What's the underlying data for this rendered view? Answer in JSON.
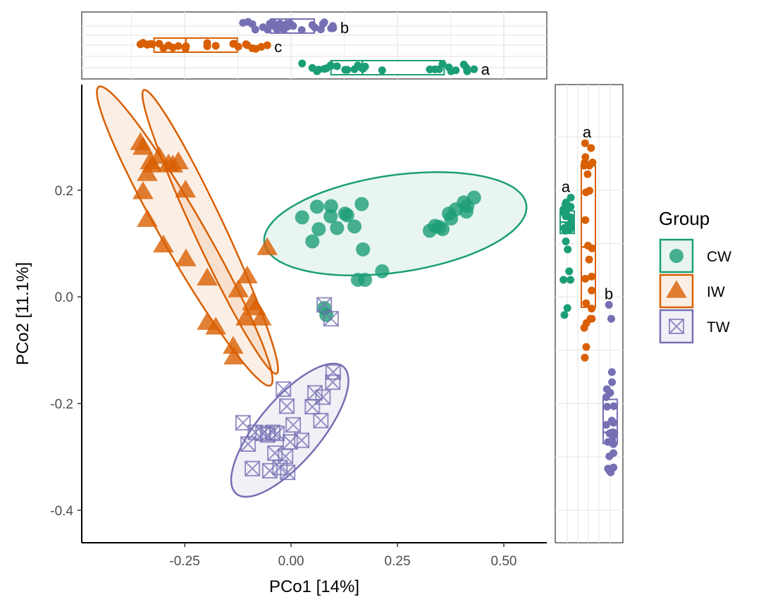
{
  "chart_data": {
    "type": "scatter",
    "xlabel": "PCo1 [14%]",
    "ylabel": "PCo2 [11.1%]",
    "xlim": [
      -0.492,
      0.601
    ],
    "ylim": [
      -0.461,
      0.398
    ],
    "grid": false,
    "x_ticks": [
      {
        "value": -0.25,
        "label": "-0.25"
      },
      {
        "value": 0,
        "label": "0.00"
      },
      {
        "value": 0.25,
        "label": "0.25"
      },
      {
        "value": 0.5,
        "label": "0.50"
      }
    ],
    "y_ticks": [
      {
        "value": -0.4,
        "label": "-0.4"
      },
      {
        "value": -0.2,
        "label": "-0.2"
      },
      {
        "value": 0,
        "label": "0.0"
      },
      {
        "value": 0.2,
        "label": "0.2"
      }
    ],
    "legend": {
      "title": "Group",
      "placement": "right"
    },
    "series": [
      {
        "name": "CW",
        "color": "#1B9E77",
        "shape": "circle",
        "top_letter": "a",
        "right_letter": "a",
        "points": [
          [
            0.026,
            0.149
          ],
          [
            0.061,
            0.169
          ],
          [
            0.094,
            0.17
          ],
          [
            0.093,
            0.151
          ],
          [
            0.065,
            0.127
          ],
          [
            0.05,
            0.104
          ],
          [
            0.108,
            0.129
          ],
          [
            0.127,
            0.156
          ],
          [
            0.132,
            0.153
          ],
          [
            0.166,
            0.174
          ],
          [
            0.149,
            0.132
          ],
          [
            0.169,
            0.089
          ],
          [
            0.214,
            0.048
          ],
          [
            0.157,
            0.032
          ],
          [
            0.174,
            0.032
          ],
          [
            0.326,
            0.124
          ],
          [
            0.338,
            0.133
          ],
          [
            0.356,
            0.127
          ],
          [
            0.348,
            0.131
          ],
          [
            0.371,
            0.156
          ],
          [
            0.376,
            0.147
          ],
          [
            0.387,
            0.164
          ],
          [
            0.406,
            0.177
          ],
          [
            0.412,
            0.16
          ],
          [
            0.414,
            0.17
          ],
          [
            0.43,
            0.186
          ],
          [
            0.078,
            -0.021
          ],
          [
            0.083,
            -0.034
          ]
        ],
        "ellipses": [
          {
            "center": [
              0.245,
              0.137
            ],
            "axis_a": [
              0.308,
              0.036
            ],
            "axis_b": [
              0.017,
              -0.09
            ]
          }
        ]
      },
      {
        "name": "IW",
        "color": "#D95F02",
        "shape": "triangle",
        "top_letter": "c",
        "right_letter": "a",
        "points": [
          [
            -0.354,
            0.288
          ],
          [
            -0.348,
            0.279
          ],
          [
            -0.331,
            0.252
          ],
          [
            -0.338,
            0.23
          ],
          [
            -0.31,
            0.262
          ],
          [
            -0.288,
            0.248
          ],
          [
            -0.265,
            0.252
          ],
          [
            -0.348,
            0.196
          ],
          [
            -0.248,
            0.199
          ],
          [
            -0.338,
            0.144
          ],
          [
            -0.3,
            0.096
          ],
          [
            -0.247,
            0.07
          ],
          [
            -0.197,
            0.034
          ],
          [
            -0.056,
            0.091
          ],
          [
            -0.103,
            0.038
          ],
          [
            -0.124,
            0.012
          ],
          [
            -0.083,
            -0.022
          ],
          [
            -0.106,
            -0.041
          ],
          [
            -0.07,
            -0.041
          ],
          [
            -0.197,
            -0.049
          ],
          [
            -0.177,
            -0.058
          ],
          [
            -0.136,
            -0.094
          ],
          [
            -0.134,
            -0.114
          ],
          [
            -0.326,
            0.246
          ],
          [
            -0.278,
            0.246
          ],
          [
            -0.091,
            -0.012
          ]
        ],
        "ellipses": [
          {
            "center": [
              -0.25,
              0.114
            ],
            "axis_a": [
              0.202,
              -0.28
            ],
            "axis_b": [
              0.043,
              0.02
            ]
          },
          {
            "center": [
              -0.19,
              0.122
            ],
            "axis_a": [
              0.156,
              -0.266
            ],
            "axis_b": [
              0.033,
              0.012
            ]
          }
        ]
      },
      {
        "name": "TW",
        "color": "#7570B3",
        "shape": "square-cross",
        "top_letter": "b",
        "right_letter": "b",
        "points": [
          [
            0.099,
            -0.141
          ],
          [
            0.098,
            -0.16
          ],
          [
            0.056,
            -0.18
          ],
          [
            0.075,
            -0.188
          ],
          [
            -0.018,
            -0.173
          ],
          [
            -0.01,
            -0.205
          ],
          [
            0.05,
            -0.206
          ],
          [
            0.07,
            -0.232
          ],
          [
            -0.113,
            -0.236
          ],
          [
            0.005,
            -0.24
          ],
          [
            -0.101,
            -0.276
          ],
          [
            -0.084,
            -0.254
          ],
          [
            -0.066,
            -0.256
          ],
          [
            -0.055,
            -0.259
          ],
          [
            -0.043,
            -0.254
          ],
          [
            -0.033,
            -0.256
          ],
          [
            -0.002,
            -0.272
          ],
          [
            0.025,
            -0.269
          ],
          [
            -0.038,
            -0.293
          ],
          [
            -0.013,
            -0.299
          ],
          [
            -0.091,
            -0.322
          ],
          [
            -0.05,
            -0.326
          ],
          [
            -0.026,
            -0.32
          ],
          [
            -0.008,
            -0.329
          ],
          [
            0.078,
            -0.015
          ],
          [
            0.094,
            -0.041
          ]
        ],
        "ellipses": [
          {
            "center": [
              -0.003,
              -0.25
            ],
            "axis_a": [
              0.126,
              0.119
            ],
            "axis_b": [
              0.056,
              -0.038
            ]
          }
        ]
      }
    ]
  }
}
